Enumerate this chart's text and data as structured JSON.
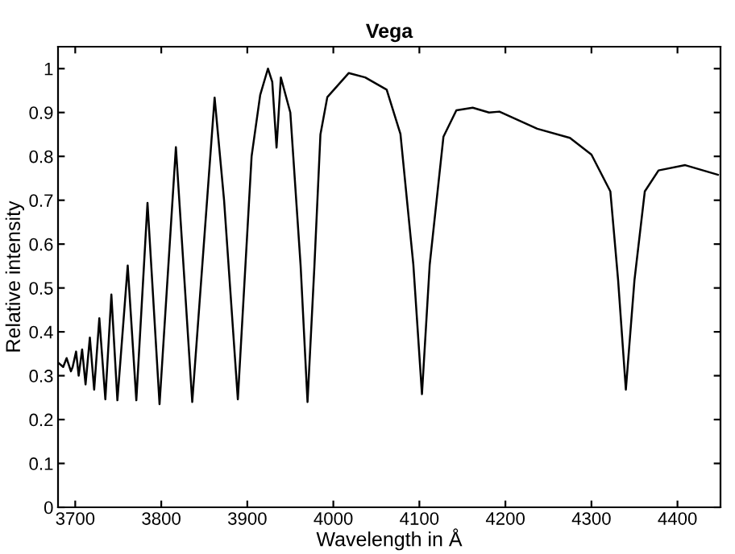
{
  "chart_data": {
    "type": "line",
    "title": "Vega",
    "xlabel": "Wavelength in Å",
    "ylabel": "Relative intensity",
    "xlim": [
      3680,
      4450
    ],
    "ylim": [
      0,
      1.05
    ],
    "xticks": [
      3700,
      3800,
      3900,
      4000,
      4100,
      4200,
      4300,
      4400
    ],
    "yticks": [
      0,
      0.1,
      0.2,
      0.3,
      0.4,
      0.5,
      0.6,
      0.7,
      0.8,
      0.9,
      1
    ],
    "grid": false,
    "marker": "none",
    "line_style": "solid",
    "series": [
      {
        "color": "#000000",
        "x": [
          3680,
          3686,
          3690,
          3695,
          3697,
          3701,
          3704,
          3708,
          3712,
          3717,
          3722,
          3728,
          3735,
          3742,
          3749,
          3761,
          3771,
          3784,
          3798,
          3817,
          3836,
          3862,
          3873,
          3889,
          3905,
          3915,
          3924,
          3929,
          3934,
          3939,
          3950,
          3962,
          3970,
          3978,
          3985,
          3993,
          4018,
          4037,
          4062,
          4078,
          4093,
          4103,
          4112,
          4128,
          4143,
          4162,
          4181,
          4193,
          4237,
          4275,
          4300,
          4322,
          4331,
          4340,
          4350,
          4362,
          4378,
          4409,
          4447
        ],
        "values": [
          0.33,
          0.32,
          0.34,
          0.31,
          0.32,
          0.355,
          0.3,
          0.36,
          0.28,
          0.387,
          0.268,
          0.431,
          0.246,
          0.485,
          0.244,
          0.551,
          0.244,
          0.694,
          0.235,
          0.821,
          0.24,
          0.934,
          0.7,
          0.246,
          0.8,
          0.94,
          1.0,
          0.97,
          0.82,
          0.98,
          0.9,
          0.55,
          0.24,
          0.55,
          0.85,
          0.935,
          0.99,
          0.98,
          0.952,
          0.851,
          0.553,
          0.258,
          0.553,
          0.845,
          0.905,
          0.911,
          0.9,
          0.902,
          0.863,
          0.842,
          0.804,
          0.72,
          0.518,
          0.268,
          0.518,
          0.72,
          0.768,
          0.78,
          0.758
        ]
      }
    ]
  }
}
